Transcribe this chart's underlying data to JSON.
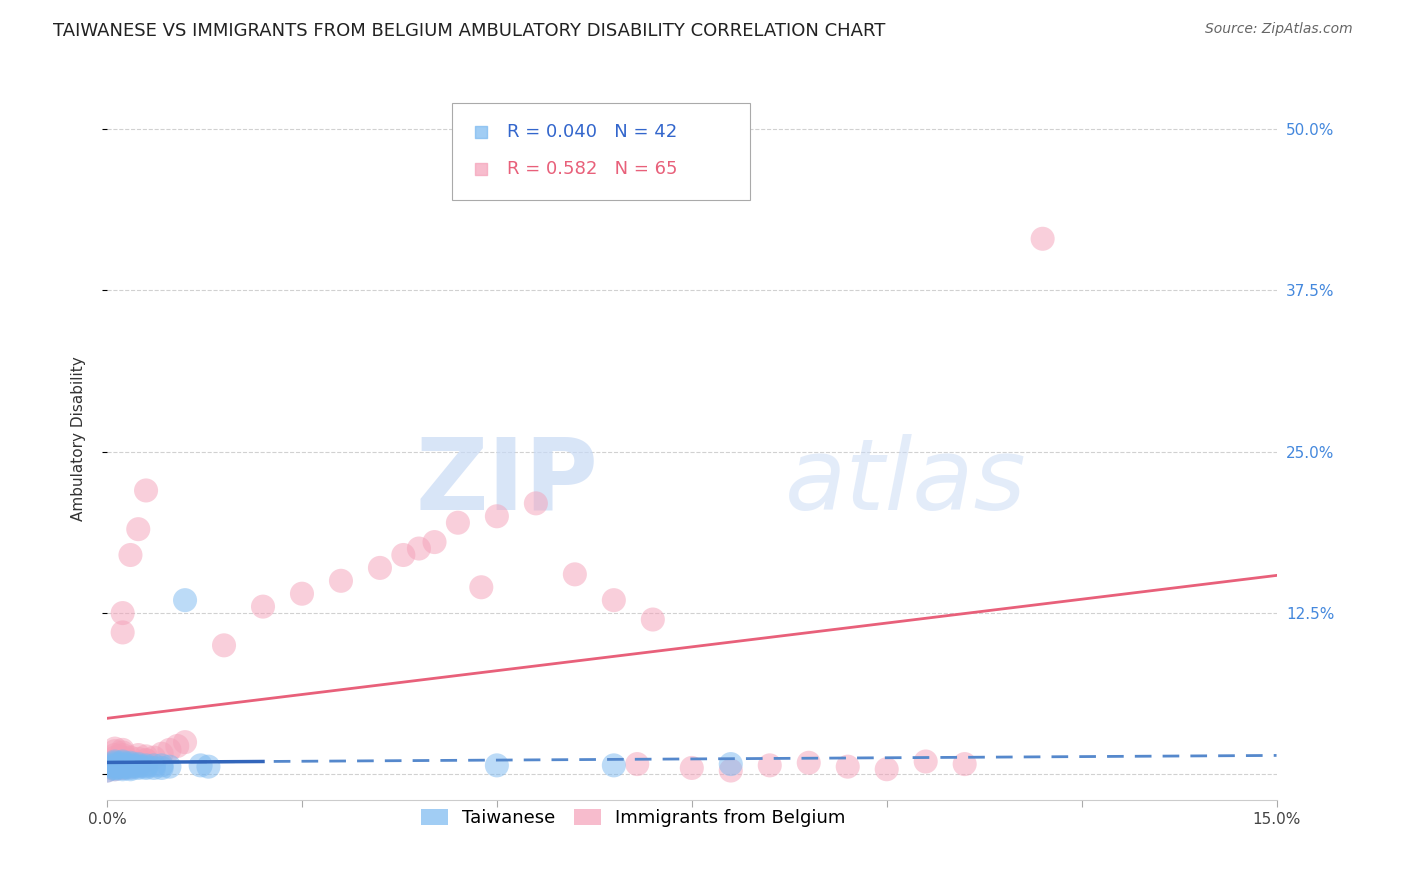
{
  "title": "TAIWANESE VS IMMIGRANTS FROM BELGIUM AMBULATORY DISABILITY CORRELATION CHART",
  "source": "Source: ZipAtlas.com",
  "ylabel": "Ambulatory Disability",
  "xlim": [
    0.0,
    0.15
  ],
  "ylim": [
    -0.02,
    0.54
  ],
  "yticks": [
    0.0,
    0.125,
    0.25,
    0.375,
    0.5
  ],
  "yticklabels": [
    "",
    "12.5%",
    "25.0%",
    "37.5%",
    "50.0%"
  ],
  "taiwan_R": 0.04,
  "taiwan_N": 42,
  "belgium_R": 0.582,
  "belgium_N": 65,
  "taiwanese_color": "#7ab8f0",
  "belgium_color": "#f4a0b8",
  "taiwan_scatter_x": [
    0.0,
    0.001,
    0.001,
    0.001,
    0.001,
    0.001,
    0.001,
    0.001,
    0.001,
    0.001,
    0.002,
    0.002,
    0.002,
    0.002,
    0.002,
    0.002,
    0.002,
    0.002,
    0.003,
    0.003,
    0.003,
    0.003,
    0.003,
    0.003,
    0.004,
    0.004,
    0.004,
    0.004,
    0.005,
    0.005,
    0.005,
    0.006,
    0.006,
    0.007,
    0.007,
    0.008,
    0.01,
    0.012,
    0.013,
    0.05,
    0.065,
    0.08
  ],
  "taiwan_scatter_y": [
    0.003,
    0.004,
    0.005,
    0.005,
    0.006,
    0.007,
    0.007,
    0.008,
    0.009,
    0.01,
    0.004,
    0.005,
    0.006,
    0.006,
    0.007,
    0.008,
    0.009,
    0.01,
    0.004,
    0.005,
    0.006,
    0.007,
    0.008,
    0.009,
    0.005,
    0.006,
    0.007,
    0.008,
    0.005,
    0.006,
    0.007,
    0.005,
    0.007,
    0.005,
    0.007,
    0.006,
    0.135,
    0.007,
    0.006,
    0.007,
    0.007,
    0.008
  ],
  "belgium_scatter_x": [
    0.0,
    0.001,
    0.001,
    0.001,
    0.001,
    0.001,
    0.001,
    0.001,
    0.001,
    0.001,
    0.002,
    0.002,
    0.002,
    0.002,
    0.002,
    0.002,
    0.002,
    0.002,
    0.002,
    0.002,
    0.003,
    0.003,
    0.003,
    0.003,
    0.003,
    0.004,
    0.004,
    0.004,
    0.004,
    0.004,
    0.005,
    0.005,
    0.005,
    0.005,
    0.005,
    0.006,
    0.007,
    0.008,
    0.009,
    0.01,
    0.015,
    0.02,
    0.025,
    0.03,
    0.035,
    0.038,
    0.04,
    0.042,
    0.045,
    0.048,
    0.05,
    0.055,
    0.06,
    0.065,
    0.068,
    0.07,
    0.075,
    0.08,
    0.085,
    0.09,
    0.095,
    0.1,
    0.105,
    0.11,
    0.12
  ],
  "belgium_scatter_y": [
    0.003,
    0.004,
    0.006,
    0.007,
    0.009,
    0.011,
    0.013,
    0.015,
    0.018,
    0.02,
    0.005,
    0.007,
    0.009,
    0.011,
    0.013,
    0.015,
    0.017,
    0.019,
    0.11,
    0.125,
    0.006,
    0.008,
    0.01,
    0.013,
    0.17,
    0.007,
    0.009,
    0.012,
    0.015,
    0.19,
    0.008,
    0.011,
    0.014,
    0.22,
    0.011,
    0.013,
    0.016,
    0.019,
    0.022,
    0.025,
    0.1,
    0.13,
    0.14,
    0.15,
    0.16,
    0.17,
    0.175,
    0.18,
    0.195,
    0.145,
    0.2,
    0.21,
    0.155,
    0.135,
    0.008,
    0.12,
    0.005,
    0.003,
    0.007,
    0.009,
    0.006,
    0.004,
    0.01,
    0.008,
    0.415
  ],
  "watermark_zip": "ZIP",
  "watermark_atlas": "atlas",
  "background_color": "#ffffff",
  "grid_color": "#cccccc",
  "title_fontsize": 13,
  "axis_label_fontsize": 11,
  "tick_fontsize": 11,
  "legend_fontsize": 13
}
